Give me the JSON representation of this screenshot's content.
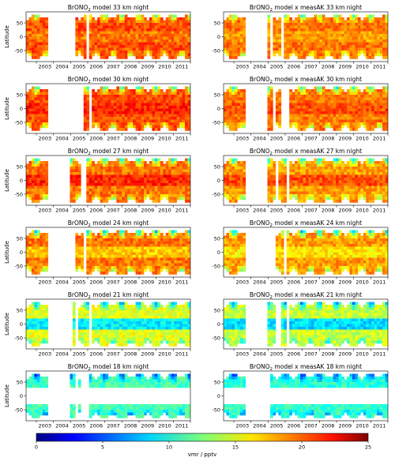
{
  "chart_data": {
    "type": "heatmap",
    "panels": [
      {
        "species": "BrONO",
        "subscript": "2",
        "title_rest": " model  33 km  night",
        "altitude_km": 33,
        "kind": "model",
        "ylabel": "Latitude"
      },
      {
        "species": "BrONO",
        "subscript": "2",
        "title_rest": " model x measAK  33 km  night",
        "altitude_km": 33,
        "kind": "model_x_measAK",
        "ylabel": ""
      },
      {
        "species": "BrONO",
        "subscript": "2",
        "title_rest": " model  30 km  night",
        "altitude_km": 30,
        "kind": "model",
        "ylabel": "Latitude"
      },
      {
        "species": "BrONO",
        "subscript": "2",
        "title_rest": " model x measAK  30 km  night",
        "altitude_km": 30,
        "kind": "model_x_measAK",
        "ylabel": ""
      },
      {
        "species": "BrONO",
        "subscript": "2",
        "title_rest": " model  27 km  night",
        "altitude_km": 27,
        "kind": "model",
        "ylabel": "Latitude"
      },
      {
        "species": "BrONO",
        "subscript": "2",
        "title_rest": " model x measAK  27 km  night",
        "altitude_km": 27,
        "kind": "model_x_measAK",
        "ylabel": ""
      },
      {
        "species": "BrONO",
        "subscript": "2",
        "title_rest": " model  24 km  night",
        "altitude_km": 24,
        "kind": "model",
        "ylabel": "Latitude"
      },
      {
        "species": "BrONO",
        "subscript": "2",
        "title_rest": " model x measAK  24 km  night",
        "altitude_km": 24,
        "kind": "model_x_measAK",
        "ylabel": ""
      },
      {
        "species": "BrONO",
        "subscript": "2",
        "title_rest": " model  21 km  night",
        "altitude_km": 21,
        "kind": "model",
        "ylabel": "Latitude"
      },
      {
        "species": "BrONO",
        "subscript": "2",
        "title_rest": " model x measAK  21 km  night",
        "altitude_km": 21,
        "kind": "model_x_measAK",
        "ylabel": ""
      },
      {
        "species": "BrONO",
        "subscript": "2",
        "title_rest": " model  18 km  night",
        "altitude_km": 18,
        "kind": "model",
        "ylabel": "Latitude"
      },
      {
        "species": "BrONO",
        "subscript": "2",
        "title_rest": " model x measAK  18 km  night",
        "altitude_km": 18,
        "kind": "model_x_measAK",
        "ylabel": ""
      }
    ],
    "x_tick_labels": [
      "2003",
      "2004",
      "2005",
      "2006",
      "2007",
      "2008",
      "2009",
      "2010",
      "2011"
    ],
    "x_range_years": [
      2002.4,
      2012.0
    ],
    "y_ticks": [
      50,
      0,
      -50
    ],
    "y_range": [
      -90,
      90
    ],
    "colorbar": {
      "label": "vmr / pptv",
      "ticks": [
        0,
        5,
        10,
        15,
        20,
        25
      ],
      "range": [
        0,
        25
      ],
      "colormap": "jet"
    },
    "typical_vmr_by_altitude": {
      "33": {
        "tropics": 19,
        "midlat": 20,
        "polar_winter": 11
      },
      "30": {
        "tropics": 21,
        "midlat": 20,
        "polar_winter": 9
      },
      "27": {
        "tropics": 21,
        "midlat": 19,
        "polar_winter": 8
      },
      "24": {
        "tropics": 17,
        "midlat": 19,
        "polar_winter": 7
      },
      "21": {
        "tropics": 9,
        "midlat": 15,
        "polar_winter": 6
      },
      "18": {
        "tropics": null,
        "midlat": 11,
        "polar_winter": 4
      }
    },
    "data_gaps": [
      [
        2003.6,
        2004.9
      ]
    ],
    "grid": false
  }
}
